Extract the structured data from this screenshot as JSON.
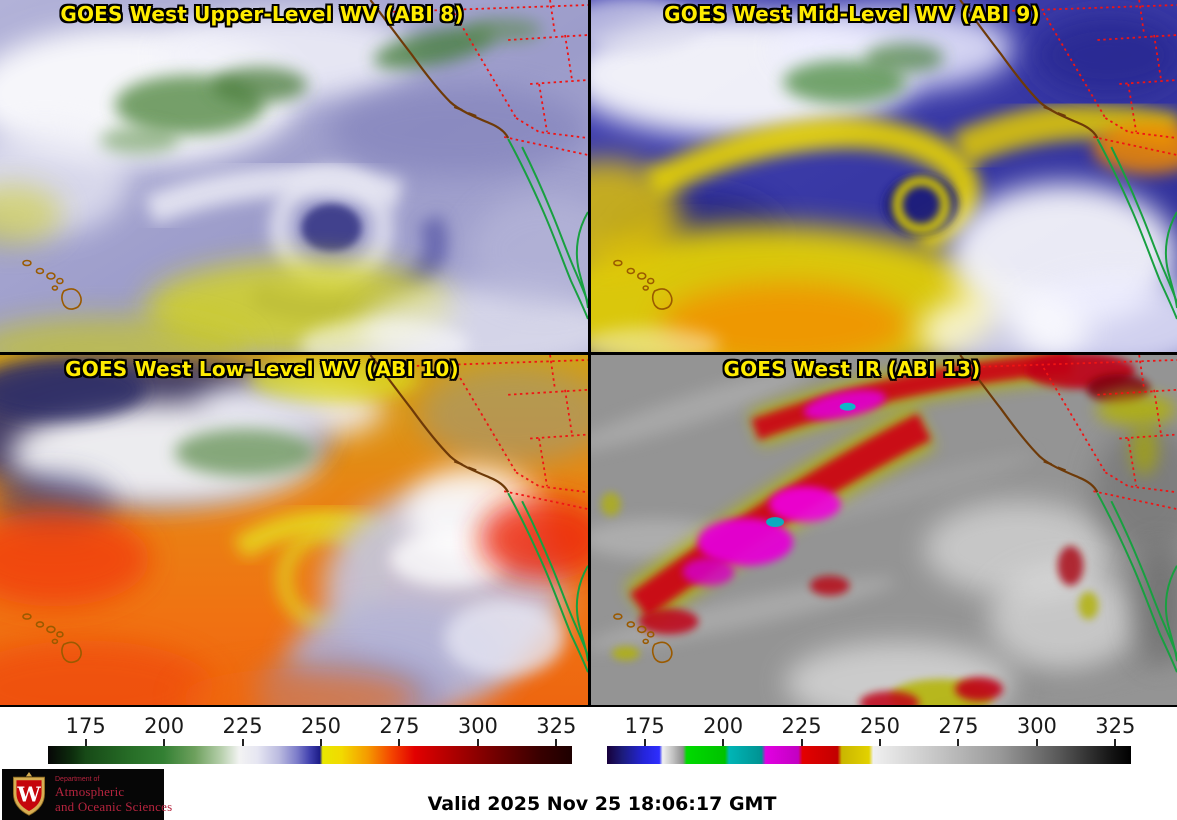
{
  "panels": [
    {
      "id": "upper-wv",
      "title": "GOES West Upper-Level WV (ABI 8)"
    },
    {
      "id": "mid-wv",
      "title": "GOES West Mid-Level WV (ABI 9)"
    },
    {
      "id": "low-wv",
      "title": "GOES West Low-Level WV (ABI 10)"
    },
    {
      "id": "ir",
      "title": "GOES West IR (ABI 13)"
    }
  ],
  "title_color": "#ffec00",
  "colorbars": {
    "tick_values": [
      175,
      200,
      225,
      250,
      275,
      300,
      325
    ],
    "value_range": [
      163,
      330
    ],
    "wv": {
      "stops": [
        [
          0,
          "#060606"
        ],
        [
          0.045,
          "#0d2c0d"
        ],
        [
          0.072,
          "#174a17"
        ],
        [
          0.16,
          "#276e27"
        ],
        [
          0.22,
          "#338033"
        ],
        [
          0.28,
          "#6da05d"
        ],
        [
          0.33,
          "#b6cfab"
        ],
        [
          0.365,
          "#f3f3f3"
        ],
        [
          0.4,
          "#e6e6f2"
        ],
        [
          0.44,
          "#bcbce0"
        ],
        [
          0.475,
          "#7d7dca"
        ],
        [
          0.5,
          "#4040ae"
        ],
        [
          0.519,
          "#1c1c86"
        ],
        [
          0.524,
          "#e8e800"
        ],
        [
          0.56,
          "#f2da00"
        ],
        [
          0.61,
          "#f59a00"
        ],
        [
          0.655,
          "#f44600"
        ],
        [
          0.7,
          "#e20000"
        ],
        [
          0.78,
          "#a80000"
        ],
        [
          0.86,
          "#6e0000"
        ],
        [
          0.94,
          "#380000"
        ],
        [
          1,
          "#1e0000"
        ]
      ]
    },
    "ir": {
      "stops": [
        [
          0,
          "#17003a"
        ],
        [
          0.03,
          "#1c1c7c"
        ],
        [
          0.07,
          "#2424da"
        ],
        [
          0.1,
          "#2e2eff"
        ],
        [
          0.106,
          "#f0f0f0"
        ],
        [
          0.125,
          "#c4c4c4"
        ],
        [
          0.145,
          "#8e8e8e"
        ],
        [
          0.152,
          "#00da00"
        ],
        [
          0.225,
          "#00c200"
        ],
        [
          0.233,
          "#00b6b6"
        ],
        [
          0.295,
          "#009292"
        ],
        [
          0.303,
          "#e200e2"
        ],
        [
          0.365,
          "#c200c2"
        ],
        [
          0.373,
          "#e40000"
        ],
        [
          0.44,
          "#c20000"
        ],
        [
          0.448,
          "#cab600"
        ],
        [
          0.5,
          "#e2d200"
        ],
        [
          0.508,
          "#f0f0f0"
        ],
        [
          0.62,
          "#c9c9c9"
        ],
        [
          0.75,
          "#999999"
        ],
        [
          0.86,
          "#5a5a5a"
        ],
        [
          0.96,
          "#161616"
        ],
        [
          1,
          "#000000"
        ]
      ]
    }
  },
  "map_colors": {
    "coastline": "#6e3a08",
    "state_borders": "#f01414",
    "mexico_coast": "#18a040",
    "hawaii_islands": "#9a5a00"
  },
  "footer": {
    "valid_text": "Valid 2025 Nov 25 18:06:17 GMT",
    "logo": {
      "department": "Department of",
      "line1": "Atmospheric",
      "line2": "and Oceanic Sciences",
      "crest_letter": "W"
    },
    "logo_colors": {
      "background": "#060606",
      "text": "#b5243e",
      "crest_red": "#c5050c",
      "crest_gold": "#d6ae52"
    }
  }
}
